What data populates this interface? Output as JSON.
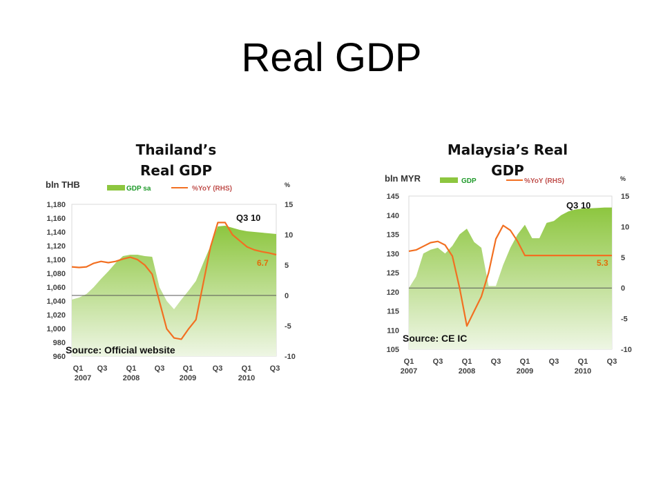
{
  "slide": {
    "title": "Real GDP"
  },
  "chart_data": [
    {
      "type": "area",
      "title": "Thailand’s Real GDP",
      "left_unit": "bln THB",
      "right_unit": "%",
      "legend": [
        {
          "name": "GDP sa",
          "color": "#8dc63f",
          "kind": "area"
        },
        {
          "name": "%YoY (RHS)",
          "color": "#f26f21",
          "kind": "line"
        }
      ],
      "legend_placement": "top",
      "ylim_left": [
        960,
        1180
      ],
      "yticks_left": [
        "960",
        "980",
        "1,000",
        "1,020",
        "1,040",
        "1,060",
        "1,080",
        "1,100",
        "1,120",
        "1,140",
        "1,160",
        "1,180"
      ],
      "ylim_right": [
        -10,
        15
      ],
      "yticks_right": [
        "-10",
        "-5",
        "0",
        "5",
        "10",
        "15"
      ],
      "xtick_labels": [
        "Q1",
        "Q3",
        "Q1",
        "Q3",
        "Q1",
        "Q3",
        "Q1",
        "Q3"
      ],
      "year_labels": [
        "2007",
        "2008",
        "2009",
        "2010"
      ],
      "x": [
        0,
        0.5,
        1,
        1.5,
        2,
        2.5,
        3,
        3.5,
        4,
        4.5,
        5,
        5.5,
        6,
        6.5,
        7,
        7.5,
        8,
        8.5,
        9,
        9.5,
        10,
        10.5,
        11,
        11.5,
        12,
        12.5,
        13,
        13.5,
        14
      ],
      "series": [
        {
          "name": "GDP sa",
          "axis": "left",
          "color": "#8dc63f",
          "values": [
            1042,
            1045,
            1050,
            1060,
            1072,
            1083,
            1095,
            1105,
            1107,
            1107,
            1105,
            1104,
            1060,
            1040,
            1028,
            1042,
            1055,
            1069,
            1095,
            1120,
            1148,
            1149,
            1146,
            1143,
            1141,
            1140,
            1139,
            1138,
            1137
          ]
        },
        {
          "name": "%YoY (RHS)",
          "axis": "right",
          "color": "#f26f21",
          "values": [
            4.7,
            4.6,
            4.7,
            5.3,
            5.6,
            5.4,
            5.6,
            6.0,
            6.3,
            5.9,
            5.0,
            3.5,
            -1.0,
            -5.5,
            -7.0,
            -7.2,
            -5.5,
            -4.0,
            2.0,
            8.0,
            12.0,
            12.0,
            10.0,
            9.0,
            8.0,
            7.5,
            7.2,
            7.0,
            6.7
          ]
        }
      ],
      "annotations": [
        "Q3 10",
        "6.7",
        "Source: Official website"
      ],
      "colors": {
        "area_top": "#8dc63f",
        "area_bottom": "#e9f3dc",
        "line": "#f26f21",
        "label_green": "#1f9a2a"
      }
    },
    {
      "type": "area",
      "title": "Malaysia’s Real GDP",
      "left_unit": "bln MYR",
      "right_unit": "%",
      "legend": [
        {
          "name": "GDP",
          "color": "#8dc63f",
          "kind": "area"
        },
        {
          "name": "%YoY (RHS)",
          "color": "#f26f21",
          "kind": "line"
        }
      ],
      "legend_placement": "top",
      "ylim_left": [
        105,
        145
      ],
      "yticks_left": [
        "105",
        "110",
        "115",
        "120",
        "125",
        "130",
        "135",
        "140",
        "145"
      ],
      "ylim_right": [
        -10,
        15
      ],
      "yticks_right": [
        "-10",
        "-5",
        "0",
        "5",
        "10",
        "15"
      ],
      "xtick_labels": [
        "Q1",
        "Q3",
        "Q1",
        "Q3",
        "Q1",
        "Q3",
        "Q1",
        "Q3"
      ],
      "year_labels": [
        "2007",
        "2008",
        "2009",
        "2010"
      ],
      "x": [
        0,
        0.5,
        1,
        1.5,
        2,
        2.5,
        3,
        3.5,
        4,
        4.5,
        5,
        5.5,
        6,
        6.5,
        7,
        7.5,
        8,
        8.5,
        9,
        9.5,
        10,
        10.5,
        11,
        11.5,
        12,
        12.5,
        13,
        13.5,
        14
      ],
      "series": [
        {
          "name": "GDP",
          "axis": "left",
          "color": "#8dc63f",
          "values": [
            121,
            124,
            130,
            131,
            131.5,
            130,
            132,
            135,
            136.5,
            133,
            131.5,
            121.5,
            121.5,
            127,
            131.5,
            135,
            137.5,
            134,
            134,
            138,
            138.5,
            140,
            141,
            141.5,
            141.7,
            141.8,
            141.9,
            142,
            142
          ]
        },
        {
          "name": "%YoY (RHS)",
          "axis": "right",
          "color": "#f26f21",
          "values": [
            6.0,
            6.2,
            6.8,
            7.4,
            7.6,
            7.0,
            5.2,
            0.0,
            -6.2,
            -3.8,
            -1.4,
            2.5,
            8.0,
            10.2,
            9.4,
            7.6,
            5.3,
            5.3,
            5.3,
            5.3,
            5.3,
            5.3,
            5.3,
            5.3,
            5.3,
            5.3,
            5.3,
            5.3,
            5.3
          ]
        }
      ],
      "annotations": [
        "Q3 10",
        "5.3",
        "Source: CE IC"
      ],
      "colors": {
        "area_top": "#8dc63f",
        "area_bottom": "#e9f3dc",
        "line": "#f26f21",
        "label_green": "#1f9a2a"
      }
    }
  ]
}
